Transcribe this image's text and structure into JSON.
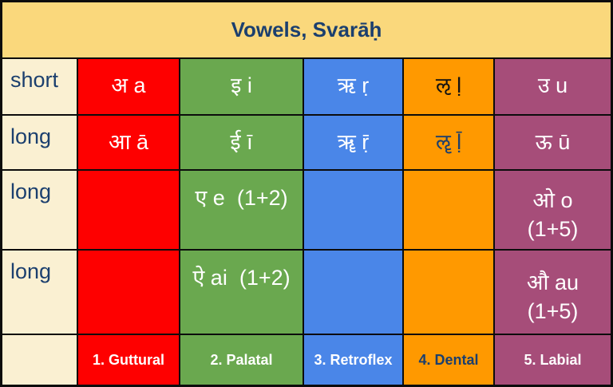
{
  "title": "Vowels, Svarāḥ",
  "rows": [
    {
      "label": "short",
      "guttural": "अ a",
      "palatal": "इ i",
      "retroflex": "ऋ ṛ",
      "dental": "ऌ ḷ",
      "labial": "उ u"
    },
    {
      "label": "long",
      "guttural": "आ ā",
      "palatal": "ई ī",
      "retroflex": "ॠ ṝ",
      "dental": "ॡ ḹ",
      "labial": "ऊ ū"
    },
    {
      "label": "long",
      "guttural": "",
      "palatal": "ए e  (1+2)",
      "retroflex": "",
      "dental": "",
      "labial_line1": "ओ o",
      "labial_line2": "(1+5)"
    },
    {
      "label": "long",
      "guttural": "",
      "palatal": "ऐ ai  (1+2)",
      "retroflex": "",
      "dental": "",
      "labial_line1": "औ au",
      "labial_line2": "(1+5)"
    }
  ],
  "footer": {
    "guttural": "1. Guttural",
    "palatal": "2. Palatal",
    "retroflex": "3. Retroflex",
    "dental": "4. Dental",
    "labial": "5. Labial"
  },
  "colors": {
    "header_bg": "#FAD87C",
    "label_bg": "#FAF0D2",
    "guttural": "#FE0000",
    "palatal": "#6AA84F",
    "retroflex": "#4A86E8",
    "dental": "#FF9900",
    "labial": "#A64D79",
    "navy_text": "#1B3F6E",
    "light_text": "#FFFFFF",
    "grid_line": "#0C0C0C"
  }
}
